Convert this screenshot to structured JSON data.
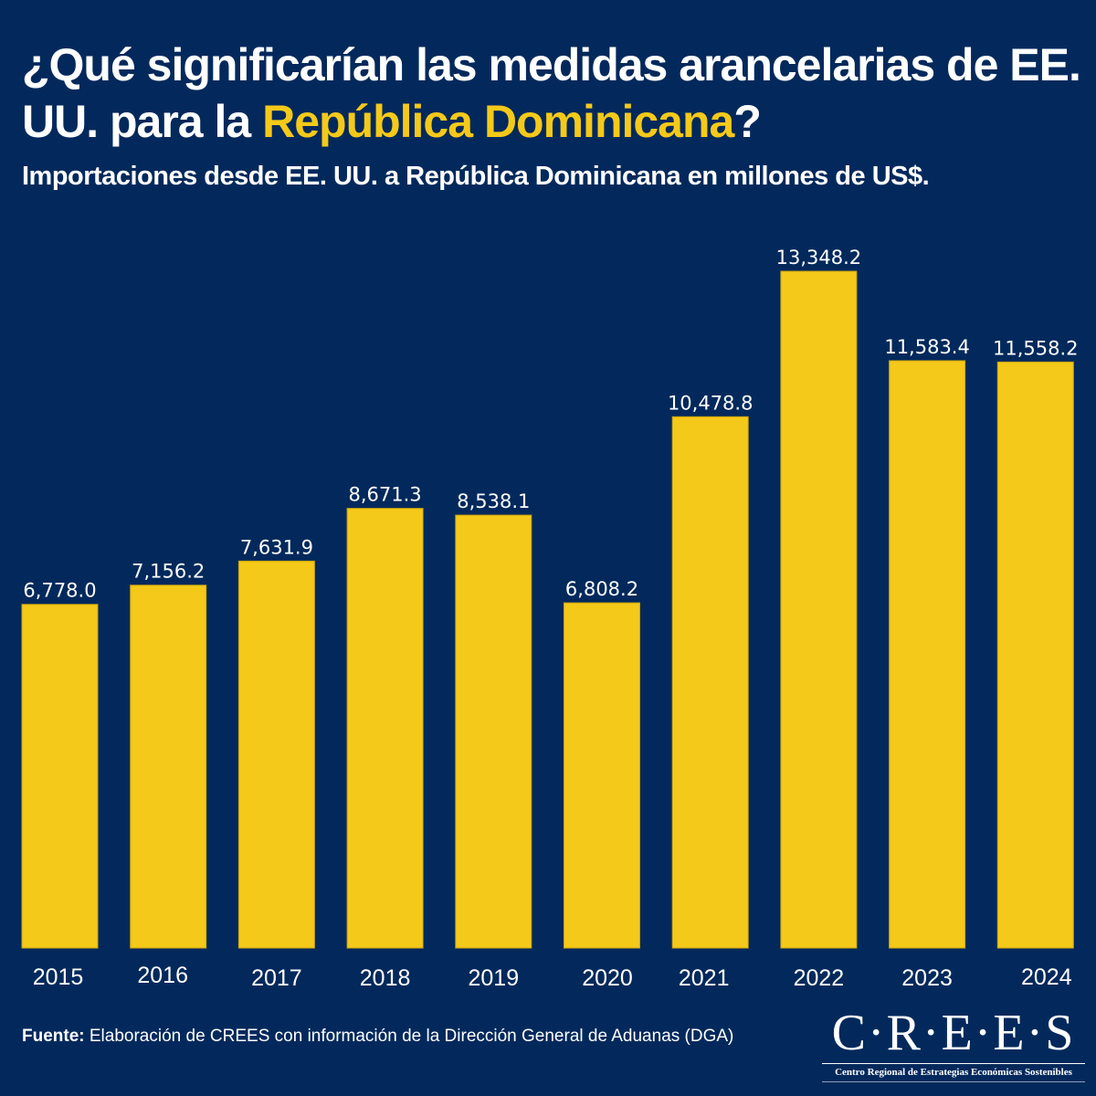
{
  "header": {
    "title_part1": "¿Qué significarían las medidas arancelarias de EE. UU. para la ",
    "title_highlight": "República Dominicana",
    "title_part2": "?",
    "subtitle": "Importaciones desde EE. UU. a República Dominicana en millones de US$."
  },
  "colors": {
    "background": "#03295c",
    "bar": "#f5c919",
    "highlight": "#f5c919",
    "text": "#ffffff"
  },
  "chart_data": {
    "type": "bar",
    "title": "Importaciones desde EE. UU. a República Dominicana en millones de US$.",
    "xlabel": "",
    "ylabel": "Millones de US$",
    "categories": [
      "2015",
      "2016",
      "2017",
      "2018",
      "2019",
      "2020",
      "2021",
      "2022",
      "2023",
      "2024"
    ],
    "values": [
      6778.0,
      7156.2,
      7631.9,
      8671.3,
      8538.1,
      6808.2,
      10478.8,
      13348.2,
      11583.4,
      11558.2
    ],
    "value_labels": [
      "6,778.0",
      "7,156.2",
      "7,631.9",
      "8,671.3",
      "8,538.1",
      "6,808.2",
      "10,478.8",
      "13,348.2",
      "11,583.4",
      "11,558.2"
    ],
    "ylim": [
      0,
      13348.2
    ],
    "grid": false,
    "legend": "none"
  },
  "footer": {
    "source_label": "Fuente:",
    "source_text": " Elaboración de CREES con información de la Dirección General de Aduanas (DGA)"
  },
  "logo": {
    "name": "C·R·E·E·S",
    "tagline": "Centro Regional de Estrategias Económicas Sostenibles"
  }
}
